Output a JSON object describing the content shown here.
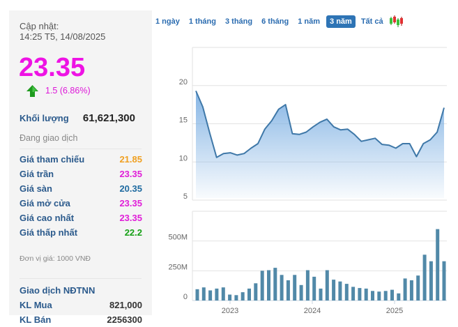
{
  "sidebar": {
    "update_label": "Cập nhật:",
    "update_time": "14:25 T5, 14/08/2025",
    "price": "23.35",
    "change": "1.5 (6.86%)",
    "change_direction": "up",
    "volume_label": "Khối lượng",
    "volume_value": "61,621,300",
    "status": "Đang giao dịch",
    "stats": [
      {
        "label": "Giá tham chiếu",
        "value": "21.85",
        "color": "#f0a020"
      },
      {
        "label": "Giá trần",
        "value": "23.35",
        "color": "#e01ed8"
      },
      {
        "label": "Giá sàn",
        "value": "20.35",
        "color": "#1e6aa0"
      },
      {
        "label": "Giá mở cửa",
        "value": "23.35",
        "color": "#e01ed8"
      },
      {
        "label": "Giá cao nhất",
        "value": "23.35",
        "color": "#e01ed8"
      },
      {
        "label": "Giá thấp nhất",
        "value": "22.2",
        "color": "#16a016"
      }
    ],
    "unit": "Đơn vị giá: 1000 VNĐ",
    "foreign_title": "Giao dịch NĐTNN",
    "foreign": [
      {
        "label": "KL Mua",
        "value": "821,000"
      },
      {
        "label": "KL Bán",
        "value": "2256300"
      }
    ]
  },
  "tabs": {
    "items": [
      {
        "label": "1 ngày",
        "active": false
      },
      {
        "label": "1 tháng",
        "active": false
      },
      {
        "label": "3 tháng",
        "active": false
      },
      {
        "label": "6 tháng",
        "active": false
      },
      {
        "label": "1 năm",
        "active": false
      },
      {
        "label": "3 năm",
        "active": true
      },
      {
        "label": "Tất cả",
        "active": false
      }
    ],
    "chart_type_icon": "candlestick-icon"
  },
  "colors": {
    "price_up": "#ee13e4",
    "line": "#3f78a8",
    "area_top": "#7fb1e3",
    "bar": "#5189a8",
    "grid": "#e2e2e2"
  },
  "chart_data": [
    {
      "type": "area",
      "title": "",
      "xlabel": "",
      "ylabel": "",
      "yticks": [
        5,
        10,
        15,
        20
      ],
      "ylim": [
        5,
        25
      ],
      "grid": true,
      "legend": "none",
      "x_ticks": [
        "2023",
        "2024",
        "2025"
      ],
      "values": [
        19.3,
        17.2,
        13.8,
        10.6,
        11.1,
        11.2,
        10.9,
        11.1,
        11.8,
        12.4,
        14.3,
        15.4,
        16.9,
        17.5,
        13.7,
        13.6,
        13.9,
        14.6,
        15.2,
        15.6,
        14.6,
        14.2,
        14.3,
        13.6,
        12.7,
        12.9,
        13.1,
        12.3,
        12.2,
        11.8,
        12.4,
        12.4,
        10.7,
        12.4,
        12.9,
        13.9,
        17.1
      ]
    },
    {
      "type": "bar",
      "title": "",
      "xlabel": "",
      "ylabel": "",
      "yticks": [
        "0",
        "250M",
        "500M"
      ],
      "ylim": [
        0,
        750
      ],
      "unit": "M",
      "grid": true,
      "legend": "none",
      "x_ticks": [
        "2023",
        "2024",
        "2025"
      ],
      "values": [
        95,
        110,
        85,
        100,
        110,
        50,
        45,
        70,
        100,
        145,
        250,
        255,
        275,
        215,
        170,
        215,
        130,
        255,
        200,
        100,
        255,
        175,
        160,
        140,
        115,
        105,
        100,
        80,
        75,
        80,
        90,
        60,
        185,
        170,
        210,
        385,
        330,
        600,
        330
      ]
    }
  ]
}
